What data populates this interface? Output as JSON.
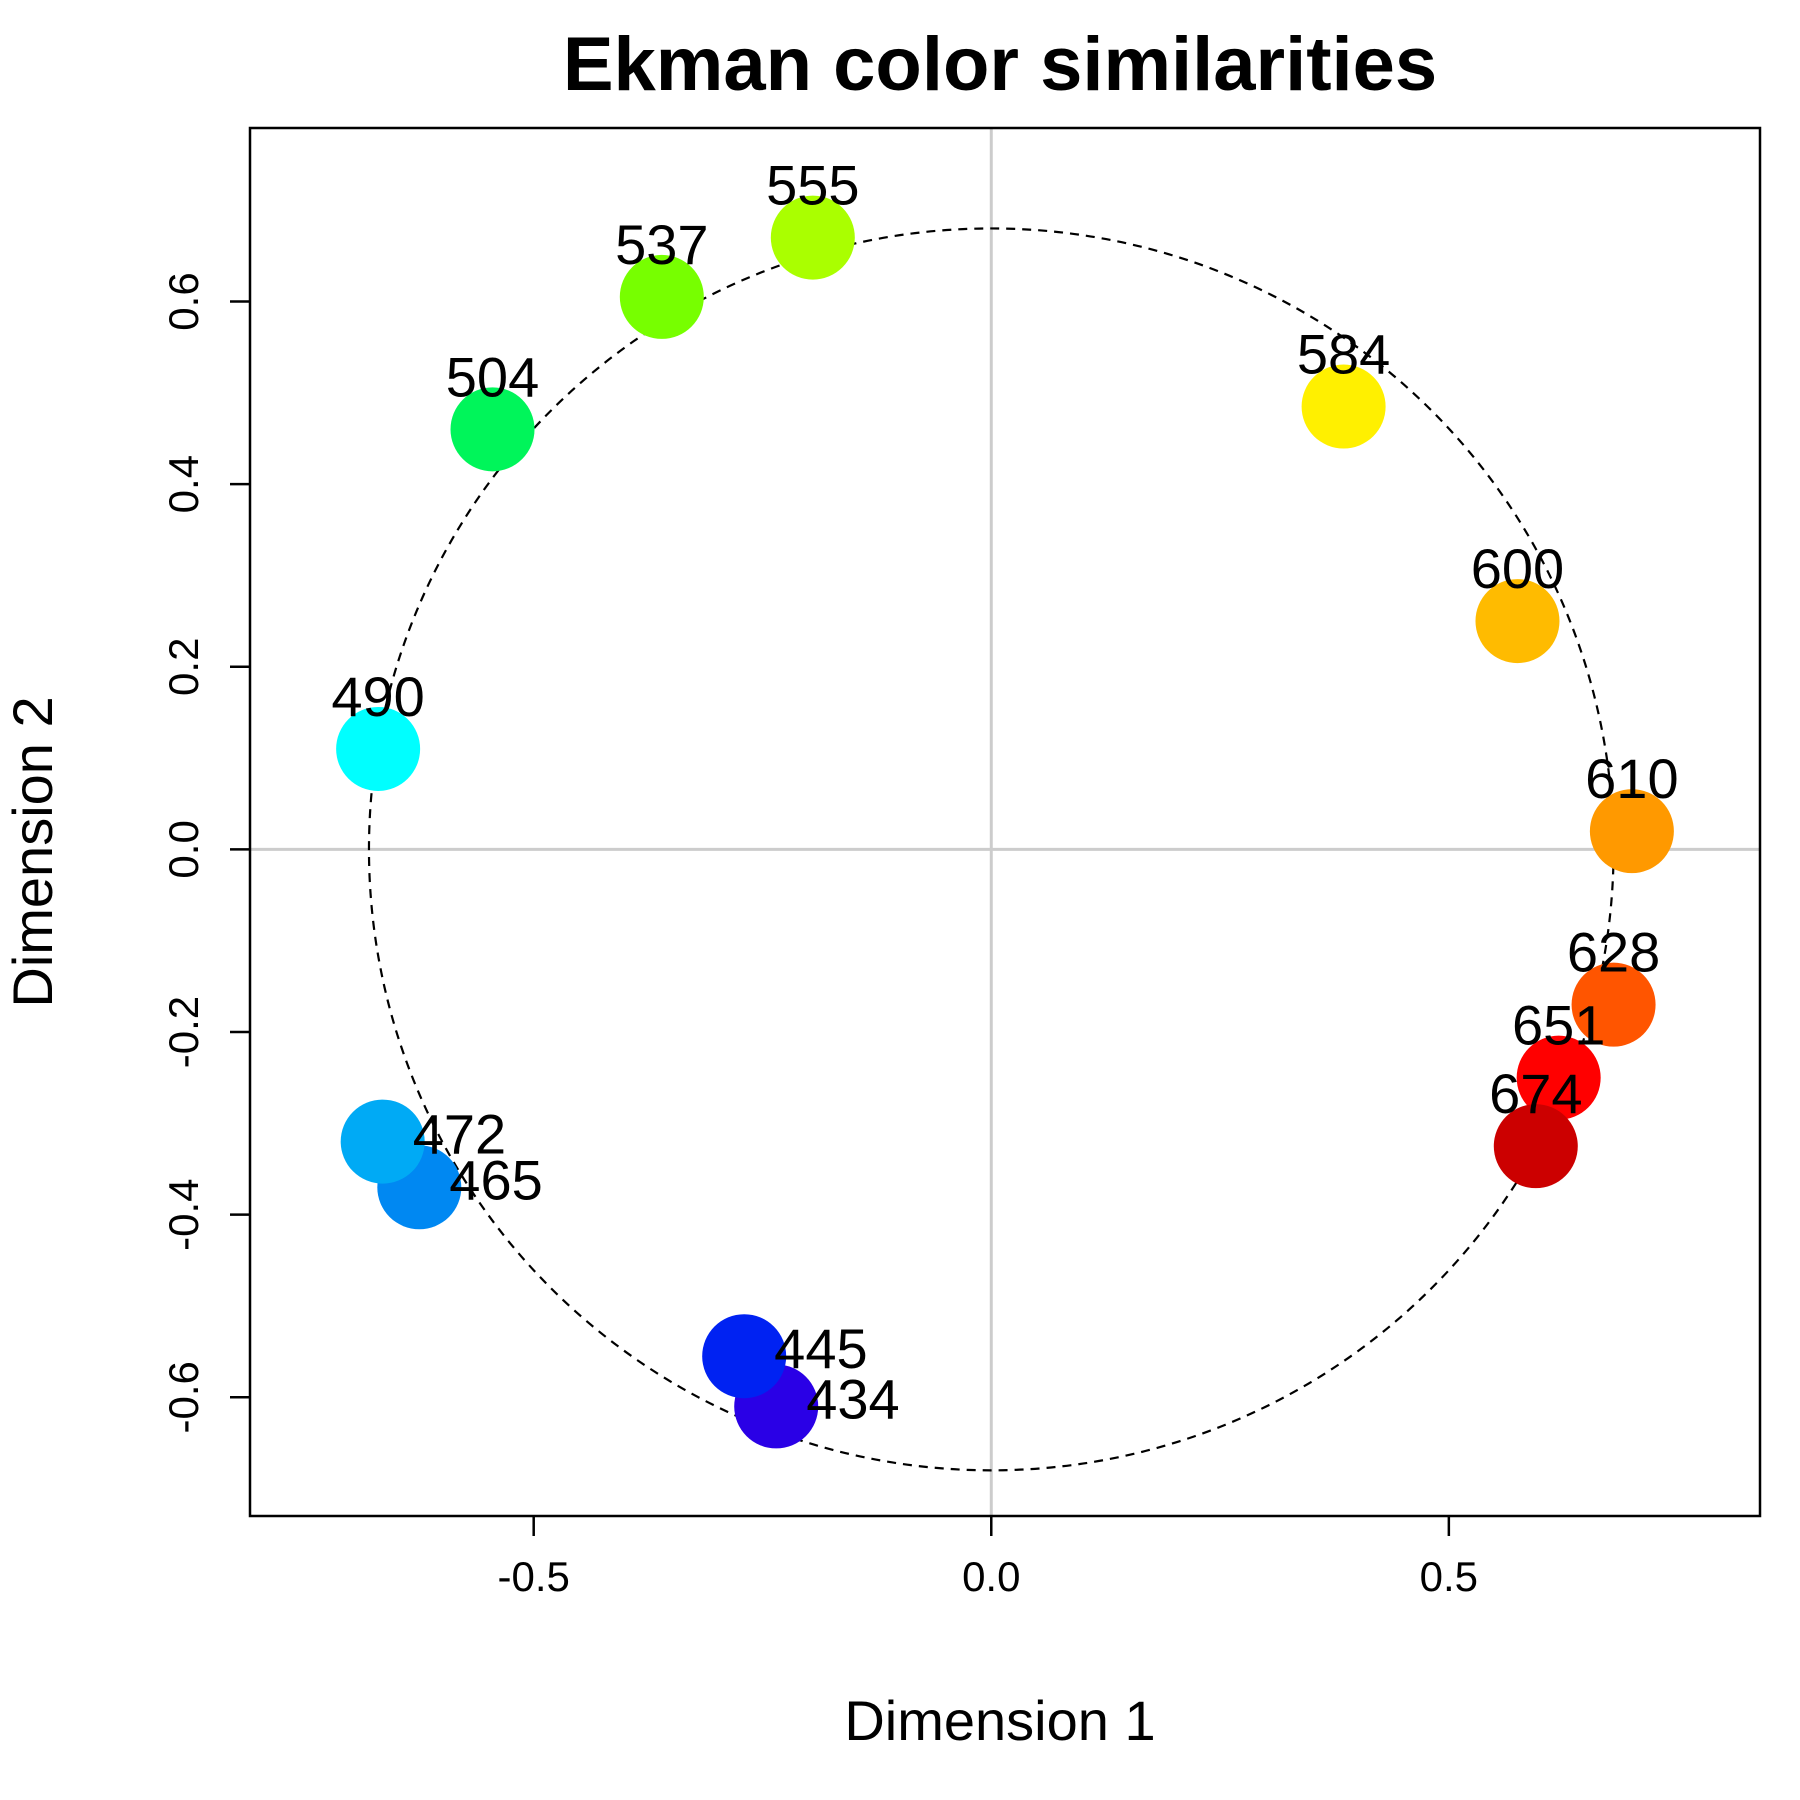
{
  "chart_data": {
    "type": "scatter",
    "title": "Ekman color similarities",
    "xlabel": "Dimension 1",
    "ylabel": "Dimension 2",
    "xlim": [
      -0.81,
      0.84
    ],
    "ylim": [
      -0.73,
      0.79
    ],
    "x_ticks": [
      -0.5,
      0.0,
      0.5
    ],
    "x_tick_labels": [
      "-0.5",
      "0.0",
      "0.5"
    ],
    "y_ticks": [
      -0.6,
      -0.4,
      -0.2,
      0.0,
      0.2,
      0.4,
      0.6
    ],
    "y_tick_labels": [
      "-0.6",
      "-0.4",
      "-0.2",
      "0.0",
      "0.2",
      "0.4",
      "0.6"
    ],
    "reference_lines": {
      "x": 0.0,
      "y": 0.0,
      "color": "#cccccc"
    },
    "circle": {
      "center": [
        0.0,
        0.0
      ],
      "radius": 0.68,
      "style": "dashed"
    },
    "grid": false,
    "legend": "none",
    "points": [
      {
        "label": "434",
        "x": -0.235,
        "y": -0.61,
        "color": "#2A00E6",
        "label_pos": "right"
      },
      {
        "label": "445",
        "x": -0.27,
        "y": -0.555,
        "color": "#0022F2",
        "label_pos": "right"
      },
      {
        "label": "465",
        "x": -0.625,
        "y": -0.37,
        "color": "#0088F2",
        "label_pos": "right"
      },
      {
        "label": "472",
        "x": -0.665,
        "y": -0.32,
        "color": "#00AAF5",
        "label_pos": "right"
      },
      {
        "label": "490",
        "x": -0.67,
        "y": 0.11,
        "color": "#00FFFF",
        "label_pos": "above"
      },
      {
        "label": "504",
        "x": -0.545,
        "y": 0.46,
        "color": "#00F55A",
        "label_pos": "above"
      },
      {
        "label": "537",
        "x": -0.36,
        "y": 0.605,
        "color": "#77FF00",
        "label_pos": "above"
      },
      {
        "label": "555",
        "x": -0.195,
        "y": 0.67,
        "color": "#AAFF00",
        "label_pos": "above"
      },
      {
        "label": "584",
        "x": 0.385,
        "y": 0.485,
        "color": "#FFF000",
        "label_pos": "above"
      },
      {
        "label": "600",
        "x": 0.575,
        "y": 0.25,
        "color": "#FFBB00",
        "label_pos": "above"
      },
      {
        "label": "610",
        "x": 0.7,
        "y": 0.02,
        "color": "#FF9900",
        "label_pos": "above"
      },
      {
        "label": "628",
        "x": 0.68,
        "y": -0.17,
        "color": "#FF5500",
        "label_pos": "above"
      },
      {
        "label": "651",
        "x": 0.62,
        "y": -0.25,
        "color": "#FF0000",
        "label_pos": "above"
      },
      {
        "label": "674",
        "x": 0.595,
        "y": -0.325,
        "color": "#CC0000",
        "label_pos": "above"
      }
    ]
  }
}
